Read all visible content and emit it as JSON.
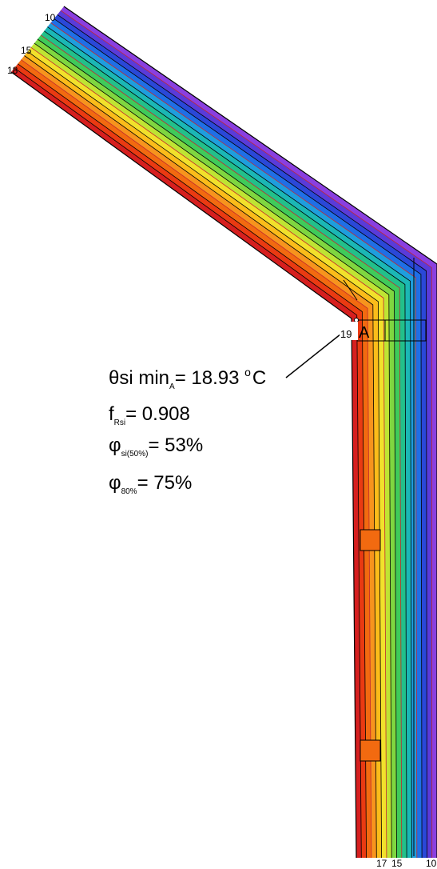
{
  "palette": [
    "#d61f1f",
    "#ea3a12",
    "#f26a10",
    "#f7941d",
    "#fbbc1a",
    "#f2e12b",
    "#bfe433",
    "#7fd640",
    "#3fcb5a",
    "#22c08a",
    "#1bb7b5",
    "#1e9ede",
    "#1f6fe6",
    "#2a48d8",
    "#5a3bd9",
    "#8a3fe0"
  ],
  "isotherm_labels": {
    "top": [
      "10",
      "15",
      "18"
    ],
    "corner": "19",
    "bottom": [
      "17",
      "15",
      "10"
    ]
  },
  "point_label": "A",
  "results": {
    "theta": {
      "symbol": "θ",
      "text": "si min",
      "sub": "A",
      "value": "= 18.93 ",
      "sup": "o",
      "unit": "C"
    },
    "f": {
      "symbol": "f",
      "sub": "Rsi",
      "value": "= 0.908"
    },
    "phi50": {
      "symbol": "φ",
      "sub": "si(50%)",
      "value": "= 53%"
    },
    "phi80": {
      "symbol": "φ",
      "sub": "80%",
      "value": "= 75%"
    }
  }
}
